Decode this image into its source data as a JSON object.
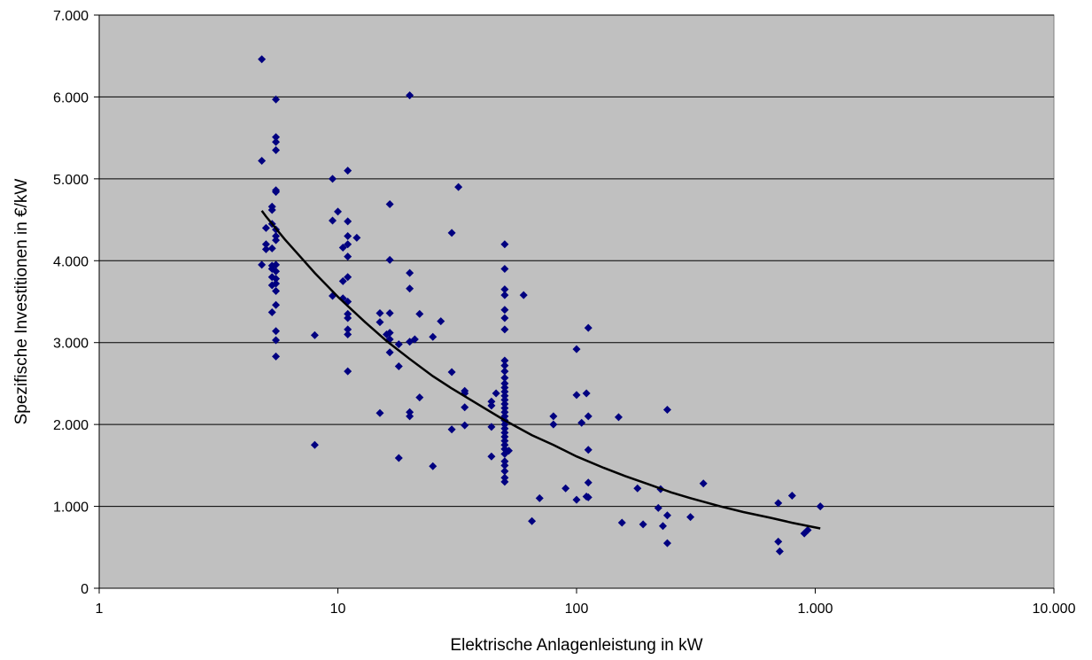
{
  "chart_data": {
    "type": "scatter",
    "title": "",
    "xlabel": "Elektrische Anlagenleistung in kW",
    "ylabel": "Spezifische Investitionen in €/kW",
    "x_scale": "log",
    "xlim": [
      1,
      10000
    ],
    "ylim": [
      0,
      7000
    ],
    "x_ticks": [
      1,
      10,
      100,
      1000,
      10000
    ],
    "x_tick_labels": [
      "1",
      "10",
      "100",
      "1.000",
      "10.000"
    ],
    "y_ticks": [
      0,
      1000,
      2000,
      3000,
      4000,
      5000,
      6000,
      7000
    ],
    "y_tick_labels": [
      "0",
      "1.000",
      "2.000",
      "3.000",
      "4.000",
      "5.000",
      "6.000",
      "7.000"
    ],
    "grid": "horizontal",
    "legend": "none",
    "colors": {
      "background": "#c0c0c0",
      "points": "#000080",
      "trendline": "#000000",
      "gridlines": "#000000"
    },
    "trendline": {
      "type": "power",
      "x": [
        4.8,
        5,
        6,
        7,
        8,
        10,
        13,
        16,
        20,
        25,
        30,
        40,
        50,
        65,
        80,
        100,
        130,
        160,
        200,
        250,
        300,
        400,
        500,
        650,
        800,
        1050
      ],
      "y": [
        4610,
        4540,
        4260,
        4040,
        3850,
        3560,
        3250,
        3020,
        2800,
        2590,
        2440,
        2220,
        2050,
        1870,
        1750,
        1610,
        1470,
        1370,
        1270,
        1170,
        1100,
        1000,
        930,
        860,
        800,
        730
      ]
    },
    "points": [
      [
        4.8,
        6460
      ],
      [
        4.8,
        5220
      ],
      [
        4.8,
        3950
      ],
      [
        5.0,
        4400
      ],
      [
        5.0,
        4200
      ],
      [
        5.0,
        4140
      ],
      [
        5.3,
        4660
      ],
      [
        5.3,
        4620
      ],
      [
        5.3,
        4450
      ],
      [
        5.3,
        4150
      ],
      [
        5.3,
        3940
      ],
      [
        5.3,
        3900
      ],
      [
        5.3,
        3800
      ],
      [
        5.3,
        3700
      ],
      [
        5.3,
        3370
      ],
      [
        5.5,
        5970
      ],
      [
        5.5,
        5510
      ],
      [
        5.5,
        5450
      ],
      [
        5.5,
        5350
      ],
      [
        5.5,
        4860
      ],
      [
        5.5,
        4840
      ],
      [
        5.5,
        4380
      ],
      [
        5.5,
        4300
      ],
      [
        5.5,
        4250
      ],
      [
        5.5,
        3950
      ],
      [
        5.5,
        3870
      ],
      [
        5.5,
        3780
      ],
      [
        5.5,
        3720
      ],
      [
        5.5,
        3630
      ],
      [
        5.5,
        3460
      ],
      [
        5.5,
        3140
      ],
      [
        5.5,
        3030
      ],
      [
        5.5,
        2830
      ],
      [
        8,
        3090
      ],
      [
        8,
        1750
      ],
      [
        9.5,
        5000
      ],
      [
        9.5,
        4490
      ],
      [
        9.5,
        3570
      ],
      [
        10,
        4600
      ],
      [
        10.5,
        4160
      ],
      [
        10.5,
        3750
      ],
      [
        10.5,
        3540
      ],
      [
        11,
        5100
      ],
      [
        11,
        4480
      ],
      [
        11,
        4300
      ],
      [
        11,
        4200
      ],
      [
        11,
        4050
      ],
      [
        11,
        3800
      ],
      [
        11,
        3500
      ],
      [
        11,
        3350
      ],
      [
        11,
        3300
      ],
      [
        11,
        3160
      ],
      [
        11,
        3100
      ],
      [
        11,
        2650
      ],
      [
        12,
        4280
      ],
      [
        15,
        3360
      ],
      [
        15,
        3250
      ],
      [
        15,
        2140
      ],
      [
        16,
        3100
      ],
      [
        16.5,
        4690
      ],
      [
        16.5,
        4010
      ],
      [
        16.5,
        3360
      ],
      [
        16.5,
        3120
      ],
      [
        16.5,
        3040
      ],
      [
        16.5,
        2880
      ],
      [
        18,
        2710
      ],
      [
        18,
        1590
      ],
      [
        18,
        2980
      ],
      [
        20,
        6020
      ],
      [
        20,
        3850
      ],
      [
        20,
        3660
      ],
      [
        20,
        3010
      ],
      [
        20,
        2150
      ],
      [
        20,
        2100
      ],
      [
        21,
        3040
      ],
      [
        22,
        3350
      ],
      [
        22,
        2330
      ],
      [
        25,
        3070
      ],
      [
        25,
        1490
      ],
      [
        27,
        3260
      ],
      [
        30,
        4340
      ],
      [
        30,
        2640
      ],
      [
        30,
        1940
      ],
      [
        32,
        4900
      ],
      [
        34,
        2410
      ],
      [
        34,
        2380
      ],
      [
        34,
        2210
      ],
      [
        34,
        1990
      ],
      [
        44,
        2280
      ],
      [
        44,
        2230
      ],
      [
        44,
        1970
      ],
      [
        44,
        1610
      ],
      [
        46,
        2380
      ],
      [
        50,
        4200
      ],
      [
        50,
        3900
      ],
      [
        50,
        3650
      ],
      [
        50,
        3580
      ],
      [
        50,
        3400
      ],
      [
        50,
        3300
      ],
      [
        50,
        3160
      ],
      [
        50,
        2780
      ],
      [
        50,
        2720
      ],
      [
        50,
        2650
      ],
      [
        50,
        2570
      ],
      [
        50,
        2500
      ],
      [
        50,
        2450
      ],
      [
        50,
        2400
      ],
      [
        50,
        2350
      ],
      [
        50,
        2300
      ],
      [
        50,
        2250
      ],
      [
        50,
        2200
      ],
      [
        50,
        2150
      ],
      [
        50,
        2100
      ],
      [
        50,
        2050
      ],
      [
        50,
        2000
      ],
      [
        50,
        1950
      ],
      [
        50,
        1900
      ],
      [
        50,
        1850
      ],
      [
        50,
        1800
      ],
      [
        50,
        1750
      ],
      [
        50,
        1700
      ],
      [
        50,
        1640
      ],
      [
        50,
        1550
      ],
      [
        50,
        1500
      ],
      [
        50,
        1430
      ],
      [
        50,
        1350
      ],
      [
        50,
        1300
      ],
      [
        52,
        1680
      ],
      [
        60,
        3580
      ],
      [
        65,
        820
      ],
      [
        70,
        1100
      ],
      [
        80,
        2100
      ],
      [
        80,
        2000
      ],
      [
        90,
        1220
      ],
      [
        100,
        2920
      ],
      [
        100,
        2360
      ],
      [
        100,
        1080
      ],
      [
        105,
        2020
      ],
      [
        110,
        2380
      ],
      [
        110,
        1120
      ],
      [
        112,
        3180
      ],
      [
        112,
        2100
      ],
      [
        112,
        1690
      ],
      [
        112,
        1290
      ],
      [
        112,
        1110
      ],
      [
        150,
        2090
      ],
      [
        155,
        800
      ],
      [
        180,
        1220
      ],
      [
        190,
        780
      ],
      [
        220,
        980
      ],
      [
        225,
        1210
      ],
      [
        230,
        760
      ],
      [
        240,
        2180
      ],
      [
        240,
        890
      ],
      [
        240,
        550
      ],
      [
        300,
        870
      ],
      [
        340,
        1280
      ],
      [
        700,
        1040
      ],
      [
        700,
        570
      ],
      [
        710,
        450
      ],
      [
        800,
        1130
      ],
      [
        900,
        670
      ],
      [
        930,
        710
      ],
      [
        1050,
        1000
      ]
    ]
  }
}
